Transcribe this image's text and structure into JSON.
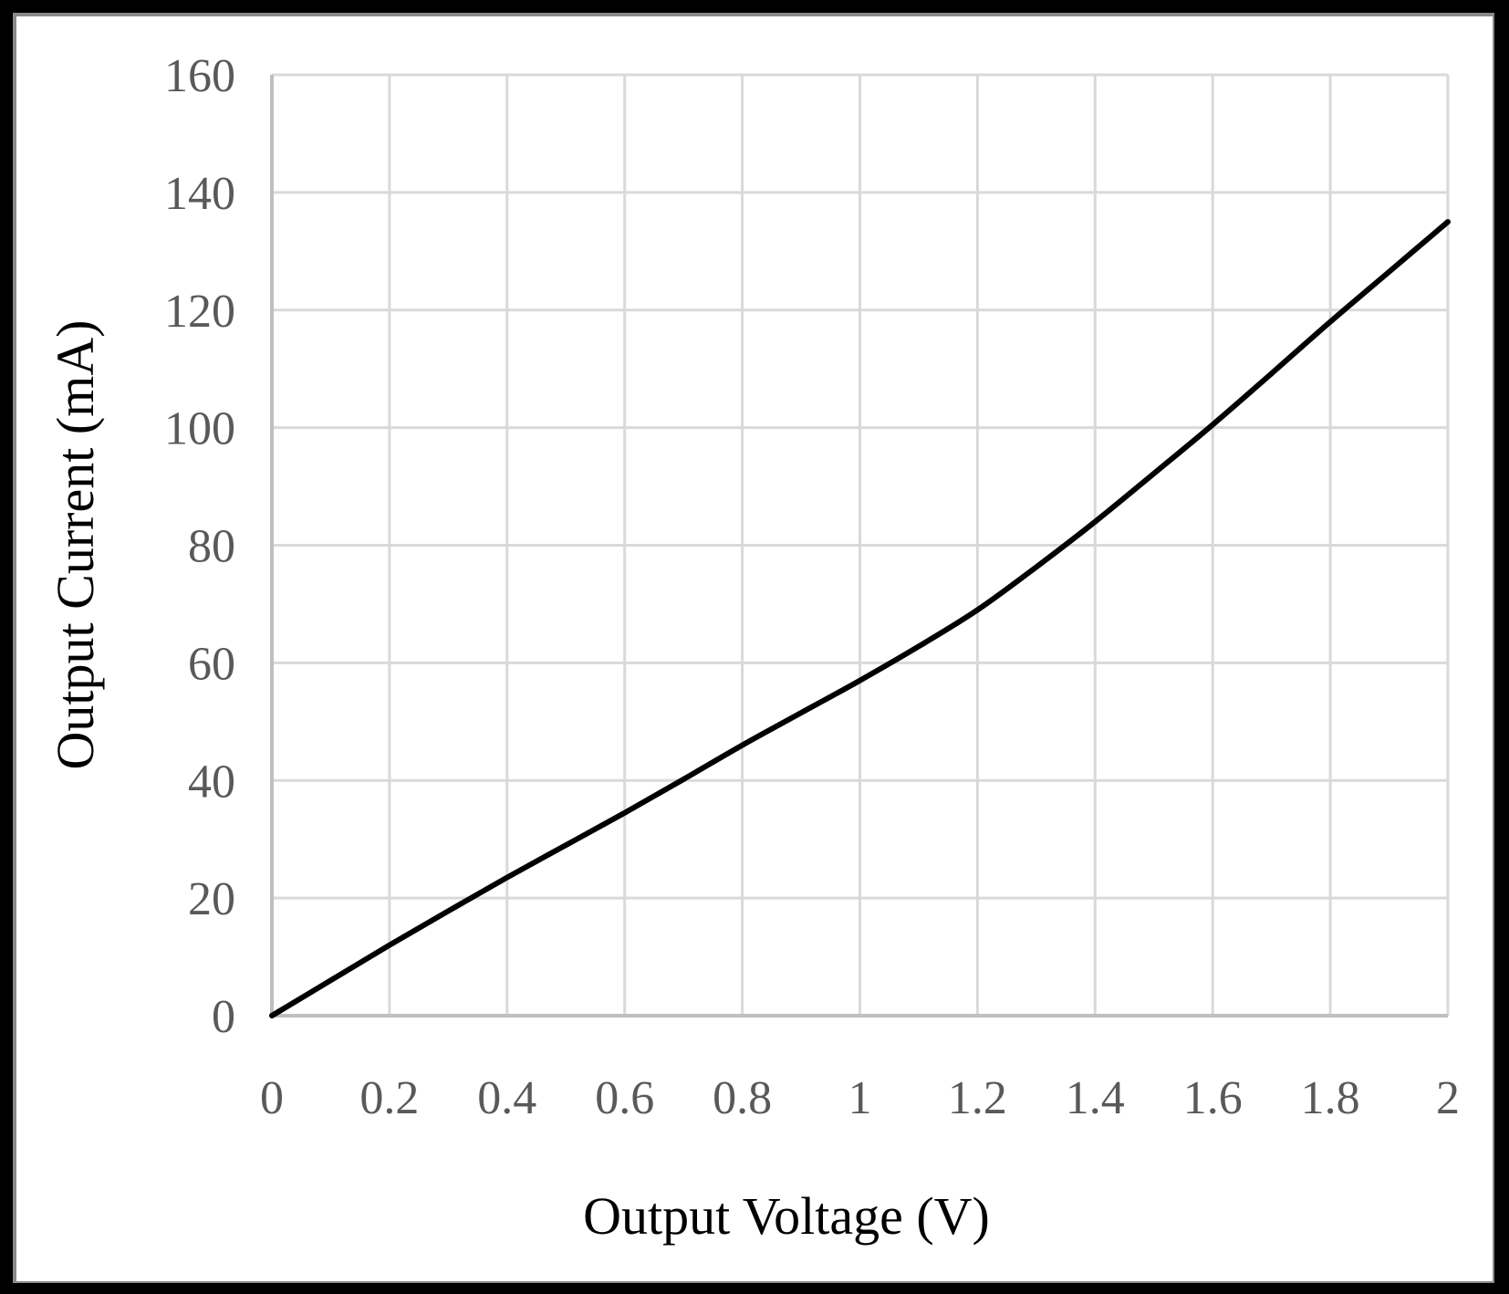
{
  "chart_data": {
    "type": "line",
    "title": "",
    "xlabel": "Output Voltage (V)",
    "ylabel": "Output Current (mA)",
    "xlim": [
      0,
      2
    ],
    "ylim": [
      0,
      160
    ],
    "x_ticks": [
      "0",
      "0.2",
      "0.4",
      "0.6",
      "0.8",
      "1",
      "1.2",
      "1.4",
      "1.6",
      "1.8",
      "2"
    ],
    "y_ticks": [
      "0",
      "20",
      "40",
      "60",
      "80",
      "100",
      "120",
      "140",
      "160"
    ],
    "grid": true,
    "legend": null,
    "series": [
      {
        "name": "Output Current",
        "color": "#000000",
        "x": [
          0,
          0.1,
          0.2,
          0.3,
          0.4,
          0.5,
          0.6,
          0.7,
          0.8,
          0.9,
          1.0,
          1.1,
          1.2,
          1.3,
          1.4,
          1.5,
          1.6,
          1.7,
          1.8,
          1.9,
          2.0
        ],
        "y": [
          0,
          6,
          12,
          17.8,
          23.5,
          29,
          34.5,
          40.2,
          46,
          51.5,
          57,
          62.8,
          69,
          76.3,
          84,
          92.2,
          100.5,
          109.2,
          118,
          126.5,
          135
        ]
      }
    ]
  },
  "colors": {
    "background": "#ffffff",
    "outer_border": "#000000",
    "inner_border": "#8a8a8a",
    "grid": "#d9d9d9",
    "tick_text": "#595959",
    "line": "#000000"
  }
}
